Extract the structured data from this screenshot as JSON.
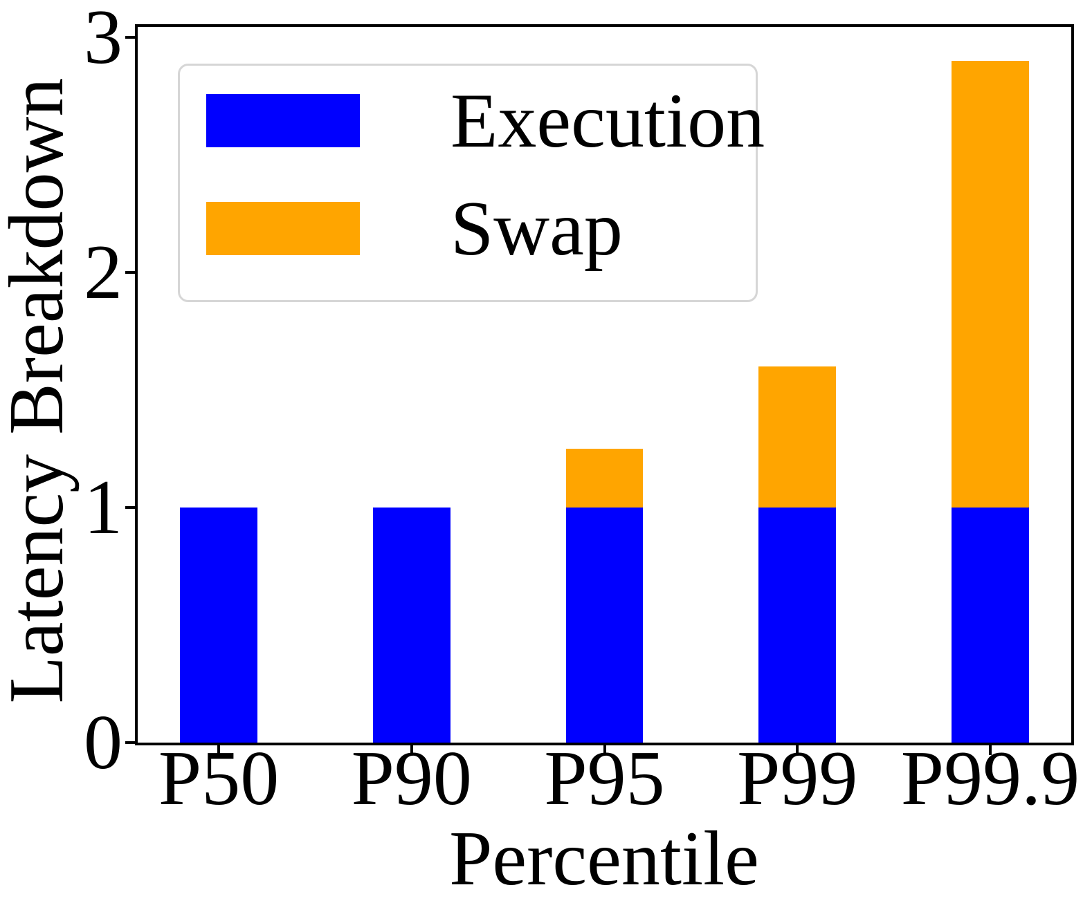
{
  "chart_data": {
    "type": "bar",
    "stacked": true,
    "title": "",
    "xlabel": "Percentile",
    "ylabel": "Latency Breakdown",
    "categories": [
      "P50",
      "P90",
      "P95",
      "P99",
      "P99.9"
    ],
    "series": [
      {
        "name": "Execution",
        "color": "#0000ff",
        "values": [
          1.0,
          1.0,
          1.0,
          1.0,
          1.0
        ]
      },
      {
        "name": "Swap",
        "color": "#ffa500",
        "values": [
          0,
          0,
          0.25,
          0.6,
          1.9
        ]
      }
    ],
    "totals": [
      1.0,
      1.0,
      1.25,
      1.6,
      2.9
    ],
    "yticks": [
      0,
      1,
      2,
      3
    ],
    "ylim": [
      0,
      3.045
    ],
    "xlim": [
      -0.42,
      4.42
    ],
    "bar_width": 0.4,
    "grid": false,
    "legend_position": "upper left"
  },
  "colors": {
    "execution": "#0000ff",
    "swap": "#ffa500",
    "axis": "#000000",
    "legend_border": "#d6d6d6",
    "background": "#ffffff"
  }
}
